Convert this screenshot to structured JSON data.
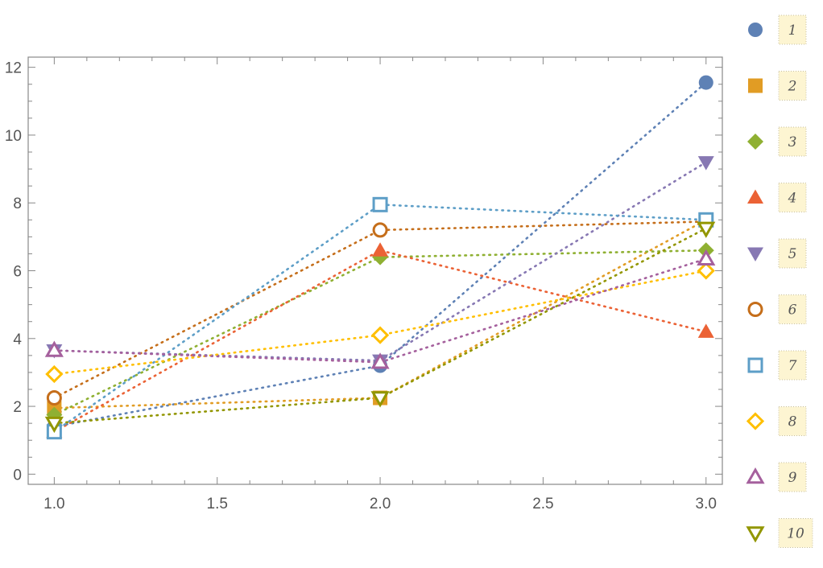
{
  "chart_data": {
    "type": "line",
    "line_style": "dotted",
    "title": "",
    "xlabel": "",
    "ylabel": "",
    "xlim": [
      0.92,
      3.05
    ],
    "ylim": [
      -0.3,
      12.3
    ],
    "x_ticks": [
      "1.0",
      "1.5",
      "2.0",
      "2.5",
      "3.0"
    ],
    "y_ticks": [
      "0",
      "2",
      "4",
      "6",
      "8",
      "10",
      "12"
    ],
    "x": [
      1.0,
      2.0,
      3.0
    ],
    "legend_position": "right",
    "series": [
      {
        "name": "1",
        "color": "#5E81B5",
        "marker": "circle-filled",
        "values": [
          1.4,
          3.2,
          11.55
        ]
      },
      {
        "name": "2",
        "color": "#E19C24",
        "marker": "square-filled",
        "values": [
          1.95,
          2.25,
          7.5
        ]
      },
      {
        "name": "3",
        "color": "#8FB032",
        "marker": "diamond-filled",
        "values": [
          1.75,
          6.4,
          6.6
        ]
      },
      {
        "name": "4",
        "color": "#EB6235",
        "marker": "triangle-up-filled",
        "values": [
          1.25,
          6.6,
          4.2
        ]
      },
      {
        "name": "5",
        "color": "#8778B3",
        "marker": "triangle-down-filled",
        "values": [
          3.65,
          3.35,
          9.2
        ]
      },
      {
        "name": "6",
        "color": "#C56E1A",
        "marker": "circle-open",
        "values": [
          2.25,
          7.2,
          7.45
        ]
      },
      {
        "name": "7",
        "color": "#5D9EC7",
        "marker": "square-open",
        "values": [
          1.25,
          7.95,
          7.5
        ]
      },
      {
        "name": "8",
        "color": "#FFBF00",
        "marker": "diamond-open",
        "values": [
          2.95,
          4.1,
          6.0
        ]
      },
      {
        "name": "9",
        "color": "#A5609D",
        "marker": "triangle-up-open",
        "values": [
          3.65,
          3.3,
          6.35
        ]
      },
      {
        "name": "10",
        "color": "#929600",
        "marker": "triangle-down-open",
        "values": [
          1.5,
          2.25,
          7.25
        ]
      }
    ]
  }
}
